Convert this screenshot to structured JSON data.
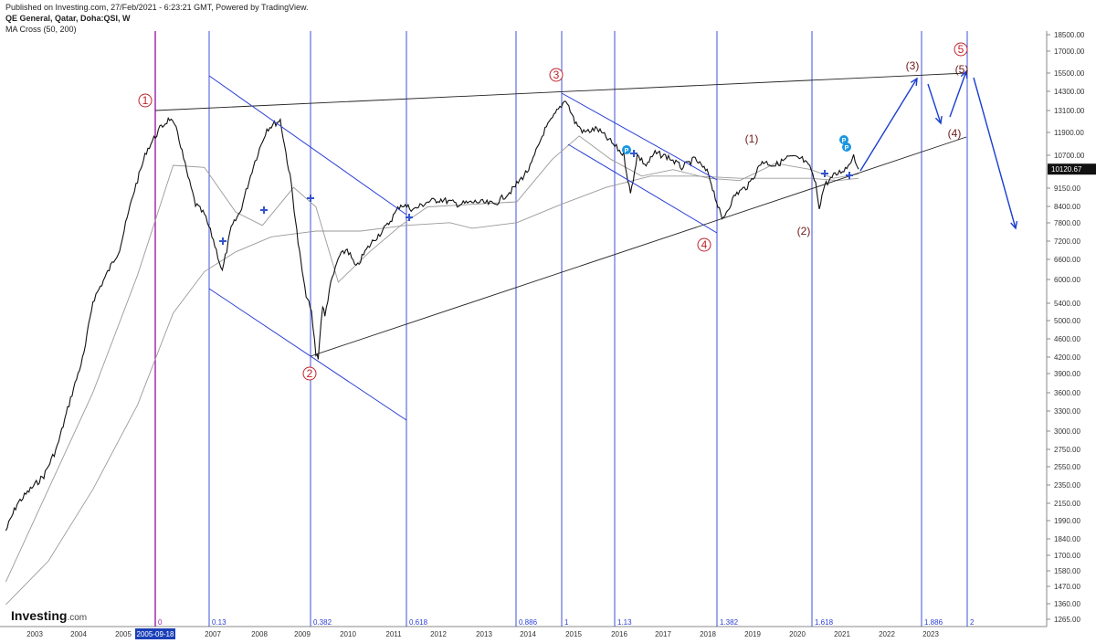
{
  "header": {
    "published": "Published on Investing.com, 27/Feb/2021 - 6:23:21 GMT, Powered by TradingView.",
    "symbol": "QE General, Qatar, Doha:QSI, W",
    "indicator": "MA Cross (50, 200)"
  },
  "branding": {
    "logo": "Investing",
    "logo_suffix": ".com"
  },
  "colors": {
    "price": "#111111",
    "ma": "#9a9a9a",
    "fib": "#2b3fd6",
    "start_line": "#9b1fa8",
    "wave": "#c0222a",
    "arrow": "#1a3fd0",
    "badge": "#1a96e0"
  },
  "chart_data": {
    "type": "line",
    "x_tick_labels": [
      "2003",
      "2004",
      "2005",
      "2005-09-18",
      "2007",
      "2008",
      "2009",
      "2010",
      "2011",
      "2012",
      "2013",
      "2014",
      "2015",
      "2016",
      "2017",
      "2018",
      "2019",
      "2020",
      "2021",
      "2022",
      "2023"
    ],
    "y_tick_labels": [
      "18500.00",
      "17000.00",
      "15500.00",
      "14300.00",
      "13100.00",
      "11900.00",
      "10700.00",
      "9150.00",
      "8400.00",
      "7800.00",
      "7200.00",
      "6600.00",
      "6000.00",
      "5400.00",
      "5000.00",
      "4600.00",
      "4200.00",
      "3900.00",
      "3600.00",
      "3300.00",
      "3000.00",
      "2750.00",
      "2550.00",
      "2350.00",
      "2150.00",
      "1990.00",
      "1840.00",
      "1700.00",
      "1580.00",
      "1470.00",
      "1360.00",
      "1265.00"
    ],
    "ylim": [
      1240,
      19500
    ],
    "y_scale": "log",
    "last_price": "10120.67",
    "series": [
      {
        "kind": "price",
        "x": [
          2002.05,
          2002.3,
          2002.6,
          2002.9,
          2003.2,
          2003.5,
          2003.8,
          2004.0,
          2004.3,
          2004.6,
          2004.9,
          2005.2,
          2005.5,
          2005.72,
          2005.9,
          2006.1,
          2006.3,
          2006.5,
          2006.7,
          2006.9,
          2007.1,
          2007.3,
          2007.6,
          2007.9,
          2008.2,
          2008.45,
          2008.6,
          2008.75,
          2008.9,
          2009.0,
          2009.05,
          2009.15,
          2009.2,
          2009.3,
          2009.5,
          2009.7,
          2009.9,
          2010.1,
          2010.3,
          2010.6,
          2010.9,
          2011.2,
          2011.5,
          2011.8,
          2012.2,
          2012.6,
          2013.0,
          2013.4,
          2013.8,
          2014.1,
          2014.4,
          2014.6,
          2014.8,
          2015.0,
          2015.3,
          2015.6,
          2015.9,
          2016.05,
          2016.2,
          2016.4,
          2016.6,
          2016.9,
          2017.2,
          2017.5,
          2017.8,
          2017.95,
          2018.1,
          2018.4,
          2018.7,
          2019.0,
          2019.3,
          2019.6,
          2019.9,
          2020.1,
          2020.2,
          2020.28,
          2020.4,
          2020.6,
          2020.9,
          2021.05,
          2021.16
        ],
        "values": [
          1900,
          2150,
          2300,
          2450,
          2800,
          3500,
          4300,
          5500,
          6200,
          7000,
          9000,
          11000,
          12200,
          12800,
          12000,
          10000,
          8600,
          8200,
          7300,
          6300,
          7700,
          8300,
          10300,
          12200,
          12700,
          9400,
          7200,
          5800,
          5200,
          4300,
          4250,
          5400,
          5100,
          5800,
          6700,
          7000,
          6400,
          6900,
          7300,
          7800,
          8600,
          8400,
          8700,
          8800,
          8600,
          8700,
          8600,
          9200,
          10200,
          12000,
          13200,
          14000,
          12600,
          12000,
          12200,
          11500,
          10800,
          9000,
          10800,
          10300,
          10900,
          10700,
          10200,
          10600,
          9900,
          8900,
          8000,
          9000,
          9400,
          10500,
          10300,
          10700,
          10600,
          10100,
          9400,
          8500,
          9400,
          9800,
          10200,
          10800,
          10120
        ]
      },
      {
        "kind": "ma",
        "name": "MA (50)",
        "x": [
          2002.05,
          2003,
          2004,
          2005,
          2005.8,
          2006.5,
          2007.2,
          2007.8,
          2008.5,
          2009.0,
          2009.5,
          2010.2,
          2010.9,
          2011.5,
          2012.5,
          2013.5,
          2014.3,
          2014.9,
          2015.6,
          2016.3,
          2017.0,
          2017.8,
          2018.5,
          2019.3,
          2020.1,
          2020.6,
          2021.16
        ],
        "values": [
          1500,
          2300,
          3600,
          6200,
          10300,
          10200,
          8300,
          7800,
          9300,
          8500,
          6000,
          6900,
          7800,
          8500,
          8600,
          8700,
          10600,
          11800,
          10600,
          9800,
          10100,
          9700,
          9600,
          10400,
          10100,
          9700,
          9900
        ]
      },
      {
        "kind": "ma",
        "name": "MA (200)",
        "x": [
          2002.05,
          2003,
          2004,
          2005,
          2005.8,
          2006.5,
          2007.2,
          2008,
          2009,
          2010,
          2011,
          2012,
          2012.5,
          2013.5,
          2014.5,
          2015.5,
          2016.5,
          2017.5,
          2018.5,
          2019.5,
          2020.1,
          2020.7,
          2021.16
        ],
        "values": [
          1350,
          1650,
          2300,
          3400,
          5200,
          6300,
          6900,
          7400,
          7600,
          7600,
          7800,
          7900,
          7700,
          7900,
          8600,
          9300,
          9800,
          9800,
          9700,
          9700,
          9700,
          9600,
          9700
        ]
      }
    ],
    "fib_time_labels": [
      "0",
      "0.13",
      "0.382",
      "0.618",
      "0.886",
      "1",
      "1.13",
      "1.382",
      "1.618",
      "1.886",
      "2"
    ],
    "wave_labels": [
      "1",
      "2",
      "3",
      "4",
      "5",
      "(1)",
      "(2)",
      "(3)",
      "(4)",
      "(5)"
    ],
    "markers": [
      "P",
      "P",
      "P"
    ]
  }
}
